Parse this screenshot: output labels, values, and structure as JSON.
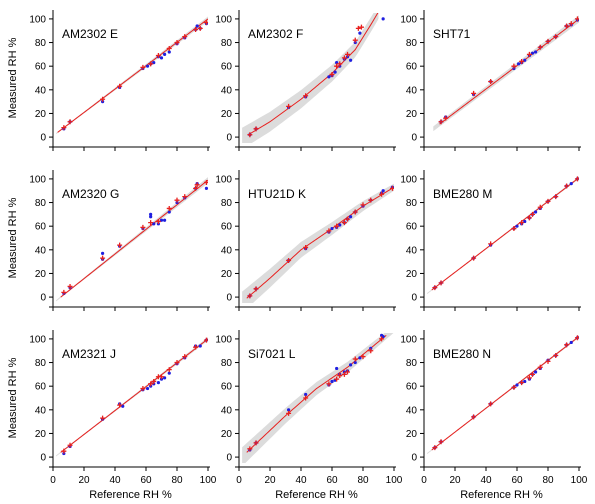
{
  "figure": {
    "ylabel": "Measured RH %",
    "xlabel": "Reference RH %",
    "x_ticks": [
      0,
      20,
      40,
      60,
      80,
      100
    ],
    "y_ticks": [
      0,
      20,
      40,
      60,
      80,
      100
    ],
    "xlim": [
      0,
      100
    ],
    "ylim": [
      -5,
      105
    ]
  },
  "colors": {
    "fit_line": "#e8201e",
    "corrected_points": "#e8201e",
    "raw_points": "#1f1fe0",
    "band": "#dcdcdc",
    "axes": "#000000"
  },
  "chart_data": [
    {
      "type": "scatter",
      "title": "AM2302 E",
      "raw": [
        [
          7,
          7
        ],
        [
          11,
          13
        ],
        [
          32,
          30
        ],
        [
          43,
          42
        ],
        [
          58,
          58
        ],
        [
          61,
          60
        ],
        [
          63,
          62
        ],
        [
          65,
          63
        ],
        [
          68,
          68
        ],
        [
          70,
          67
        ],
        [
          72,
          70
        ],
        [
          75,
          72
        ],
        [
          80,
          79
        ],
        [
          85,
          84
        ],
        [
          92,
          91
        ],
        [
          93,
          94
        ],
        [
          95,
          92
        ],
        [
          99,
          96
        ]
      ],
      "corrected": [
        [
          7,
          8
        ],
        [
          11,
          13
        ],
        [
          32,
          32
        ],
        [
          43,
          43
        ],
        [
          58,
          59
        ],
        [
          63,
          62
        ],
        [
          68,
          69
        ],
        [
          75,
          75
        ],
        [
          80,
          80
        ],
        [
          85,
          85
        ],
        [
          92,
          91
        ],
        [
          95,
          92
        ],
        [
          99,
          97
        ]
      ],
      "fit": [
        [
          3,
          4
        ],
        [
          100,
          100
        ]
      ],
      "band": [
        [
          2,
          0.5
        ],
        [
          100,
          2
        ]
      ]
    },
    {
      "type": "scatter",
      "title": "AM2302 F",
      "raw": [
        [
          7,
          2
        ],
        [
          11,
          7
        ],
        [
          32,
          25
        ],
        [
          43,
          34
        ],
        [
          58,
          51
        ],
        [
          60,
          52
        ],
        [
          62,
          55
        ],
        [
          63,
          63
        ],
        [
          65,
          60
        ],
        [
          68,
          66
        ],
        [
          70,
          68
        ],
        [
          72,
          65
        ],
        [
          75,
          80
        ],
        [
          78,
          88
        ],
        [
          93,
          100
        ]
      ],
      "corrected": [
        [
          7,
          2
        ],
        [
          11,
          7
        ],
        [
          32,
          26
        ],
        [
          43,
          35
        ],
        [
          60,
          53
        ],
        [
          63,
          60
        ],
        [
          65,
          62
        ],
        [
          68,
          67
        ],
        [
          70,
          70
        ],
        [
          75,
          82
        ],
        [
          77,
          92
        ],
        [
          79,
          93
        ]
      ],
      "fit": [
        [
          6,
          2
        ],
        [
          20,
          13
        ],
        [
          40,
          32
        ],
        [
          60,
          54
        ],
        [
          75,
          74
        ],
        [
          85,
          95
        ],
        [
          90,
          106
        ]
      ],
      "band": [
        [
          2,
          9
        ],
        [
          90,
          6
        ]
      ]
    },
    {
      "type": "scatter",
      "title": "SHT71",
      "raw": [
        [
          11,
          13
        ],
        [
          14,
          17
        ],
        [
          32,
          36
        ],
        [
          43,
          47
        ],
        [
          58,
          58
        ],
        [
          61,
          62
        ],
        [
          63,
          63
        ],
        [
          65,
          65
        ],
        [
          68,
          69
        ],
        [
          70,
          71
        ],
        [
          72,
          72
        ],
        [
          75,
          76
        ],
        [
          80,
          81
        ],
        [
          85,
          85
        ],
        [
          92,
          94
        ],
        [
          95,
          95
        ],
        [
          99,
          99
        ]
      ],
      "corrected": [
        [
          11,
          13
        ],
        [
          14,
          16
        ],
        [
          32,
          37
        ],
        [
          43,
          47
        ],
        [
          58,
          60
        ],
        [
          63,
          64
        ],
        [
          68,
          70
        ],
        [
          75,
          76
        ],
        [
          80,
          81
        ],
        [
          85,
          85
        ],
        [
          92,
          94
        ],
        [
          95,
          96
        ],
        [
          99,
          100
        ]
      ],
      "fit": [
        [
          10,
          11
        ],
        [
          100,
          100
        ]
      ],
      "band": [
        [
          6,
          2
        ],
        [
          100,
          3
        ]
      ]
    },
    {
      "type": "scatter",
      "title": "AM2320 G",
      "raw": [
        [
          7,
          3
        ],
        [
          11,
          8
        ],
        [
          32,
          32
        ],
        [
          32,
          37
        ],
        [
          43,
          43
        ],
        [
          58,
          58
        ],
        [
          63,
          68
        ],
        [
          63,
          70
        ],
        [
          65,
          62
        ],
        [
          68,
          62
        ],
        [
          70,
          65
        ],
        [
          72,
          65
        ],
        [
          75,
          72
        ],
        [
          80,
          80
        ],
        [
          85,
          84
        ],
        [
          92,
          92
        ],
        [
          93,
          96
        ],
        [
          99,
          92
        ]
      ],
      "corrected": [
        [
          7,
          4
        ],
        [
          11,
          9
        ],
        [
          32,
          33
        ],
        [
          43,
          44
        ],
        [
          58,
          59
        ],
        [
          63,
          63
        ],
        [
          68,
          64
        ],
        [
          75,
          75
        ],
        [
          80,
          82
        ],
        [
          85,
          85
        ],
        [
          92,
          92
        ],
        [
          93,
          95
        ],
        [
          99,
          97
        ]
      ],
      "fit": [
        [
          5,
          0
        ],
        [
          100,
          99
        ]
      ],
      "band": [
        [
          2,
          0.5
        ],
        [
          100,
          2.5
        ]
      ]
    },
    {
      "type": "scatter",
      "title": "HTU21D K",
      "raw": [
        [
          7,
          1
        ],
        [
          11,
          7
        ],
        [
          32,
          31
        ],
        [
          43,
          41
        ],
        [
          58,
          55
        ],
        [
          60,
          58
        ],
        [
          63,
          59
        ],
        [
          65,
          61
        ],
        [
          68,
          63
        ],
        [
          70,
          66
        ],
        [
          72,
          68
        ],
        [
          75,
          72
        ],
        [
          80,
          77
        ],
        [
          85,
          82
        ],
        [
          92,
          88
        ],
        [
          93,
          90
        ],
        [
          99,
          93
        ]
      ],
      "corrected": [
        [
          7,
          1
        ],
        [
          11,
          7
        ],
        [
          32,
          31
        ],
        [
          43,
          42
        ],
        [
          58,
          56
        ],
        [
          63,
          60
        ],
        [
          68,
          63
        ],
        [
          70,
          66
        ],
        [
          75,
          72
        ],
        [
          80,
          78
        ],
        [
          85,
          82
        ],
        [
          92,
          87
        ],
        [
          99,
          92
        ]
      ],
      "fit": [
        [
          5,
          -1
        ],
        [
          20,
          16
        ],
        [
          40,
          40
        ],
        [
          60,
          58
        ],
        [
          80,
          77
        ],
        [
          100,
          93
        ]
      ],
      "band": [
        [
          2,
          9
        ],
        [
          100,
          3
        ]
      ]
    },
    {
      "type": "scatter",
      "title": "BME280 M",
      "raw": [
        [
          7,
          8
        ],
        [
          11,
          12
        ],
        [
          32,
          33
        ],
        [
          43,
          44
        ],
        [
          58,
          58
        ],
        [
          60,
          60
        ],
        [
          63,
          62
        ],
        [
          65,
          64
        ],
        [
          68,
          67
        ],
        [
          70,
          70
        ],
        [
          72,
          72
        ],
        [
          75,
          75
        ],
        [
          80,
          81
        ],
        [
          85,
          85
        ],
        [
          92,
          94
        ],
        [
          95,
          96
        ],
        [
          99,
          100
        ]
      ],
      "corrected": [
        [
          7,
          8
        ],
        [
          11,
          12
        ],
        [
          32,
          33
        ],
        [
          43,
          45
        ],
        [
          58,
          58
        ],
        [
          63,
          63
        ],
        [
          68,
          67
        ],
        [
          70,
          70
        ],
        [
          75,
          76
        ],
        [
          80,
          81
        ],
        [
          85,
          85
        ],
        [
          92,
          94
        ],
        [
          99,
          100
        ]
      ],
      "fit": [
        [
          5,
          6
        ],
        [
          100,
          101
        ]
      ],
      "band": [
        [
          2,
          0.5
        ],
        [
          100,
          1
        ]
      ]
    },
    {
      "type": "scatter",
      "title": "AM2321 J",
      "raw": [
        [
          7,
          3
        ],
        [
          11,
          9
        ],
        [
          32,
          32
        ],
        [
          43,
          45
        ],
        [
          45,
          43
        ],
        [
          58,
          57
        ],
        [
          61,
          58
        ],
        [
          63,
          60
        ],
        [
          65,
          62
        ],
        [
          68,
          63
        ],
        [
          70,
          66
        ],
        [
          72,
          67
        ],
        [
          75,
          71
        ],
        [
          80,
          79
        ],
        [
          85,
          84
        ],
        [
          92,
          94
        ],
        [
          95,
          94
        ],
        [
          99,
          99
        ]
      ],
      "corrected": [
        [
          7,
          5
        ],
        [
          11,
          10
        ],
        [
          32,
          33
        ],
        [
          43,
          44
        ],
        [
          58,
          58
        ],
        [
          63,
          62
        ],
        [
          65,
          64
        ],
        [
          68,
          68
        ],
        [
          70,
          68
        ],
        [
          75,
          74
        ],
        [
          80,
          80
        ],
        [
          85,
          85
        ],
        [
          92,
          93
        ],
        [
          99,
          99
        ]
      ],
      "fit": [
        [
          5,
          4
        ],
        [
          100,
          100
        ]
      ],
      "band": [
        [
          2,
          0.5
        ],
        [
          100,
          1.5
        ]
      ]
    },
    {
      "type": "scatter",
      "title": "Si7021 L",
      "raw": [
        [
          7,
          6
        ],
        [
          11,
          12
        ],
        [
          32,
          40
        ],
        [
          43,
          53
        ],
        [
          58,
          61
        ],
        [
          60,
          64
        ],
        [
          62,
          65
        ],
        [
          63,
          75
        ],
        [
          65,
          70
        ],
        [
          68,
          72
        ],
        [
          70,
          73
        ],
        [
          72,
          78
        ],
        [
          75,
          80
        ],
        [
          78,
          84
        ],
        [
          85,
          92
        ],
        [
          92,
          103
        ],
        [
          93,
          102
        ]
      ],
      "corrected": [
        [
          7,
          7
        ],
        [
          11,
          12
        ],
        [
          32,
          37
        ],
        [
          43,
          50
        ],
        [
          58,
          62
        ],
        [
          63,
          66
        ],
        [
          65,
          69
        ],
        [
          68,
          70
        ],
        [
          70,
          72
        ],
        [
          75,
          83
        ],
        [
          80,
          85
        ],
        [
          85,
          90
        ],
        [
          92,
          100
        ]
      ],
      "fit": [
        [
          5,
          4
        ],
        [
          30,
          35
        ],
        [
          50,
          58
        ],
        [
          70,
          76
        ],
        [
          95,
          103
        ]
      ],
      "band": [
        [
          2,
          8
        ],
        [
          100,
          3
        ]
      ]
    },
    {
      "type": "scatter",
      "title": "BME280 N",
      "raw": [
        [
          7,
          8
        ],
        [
          11,
          13
        ],
        [
          32,
          34
        ],
        [
          43,
          45
        ],
        [
          58,
          59
        ],
        [
          60,
          61
        ],
        [
          63,
          63
        ],
        [
          65,
          64
        ],
        [
          68,
          66
        ],
        [
          70,
          70
        ],
        [
          72,
          72
        ],
        [
          75,
          75
        ],
        [
          80,
          82
        ],
        [
          85,
          86
        ],
        [
          92,
          95
        ],
        [
          95,
          97
        ],
        [
          99,
          101
        ]
      ],
      "corrected": [
        [
          7,
          8
        ],
        [
          11,
          13
        ],
        [
          32,
          34
        ],
        [
          43,
          45
        ],
        [
          58,
          59
        ],
        [
          63,
          63
        ],
        [
          68,
          67
        ],
        [
          70,
          70
        ],
        [
          75,
          76
        ],
        [
          80,
          81
        ],
        [
          85,
          86
        ],
        [
          92,
          95
        ],
        [
          99,
          101
        ]
      ],
      "fit": [
        [
          5,
          6
        ],
        [
          100,
          102
        ]
      ],
      "band": [
        [
          2,
          0.5
        ],
        [
          100,
          1
        ]
      ]
    }
  ]
}
